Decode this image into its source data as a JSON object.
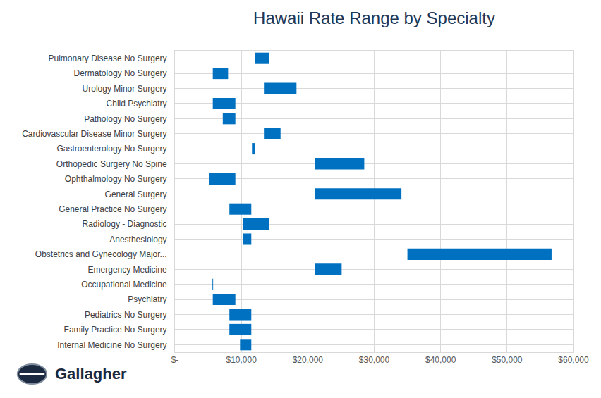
{
  "chart_data": {
    "type": "bar",
    "orientation": "horizontal",
    "title": "Hawaii Rate Range by Specialty",
    "categories": [
      "Pulmonary Disease No Surgery",
      "Dermatology No Surgery",
      "Urology Minor Surgery",
      "Child Psychiatry",
      "Pathology No Surgery",
      "Cardiovascular Disease Minor Surgery",
      "Gastroenterology No Surgery",
      "Orthopedic Surgery No Spine",
      "Ophthalmology No Surgery",
      "General Surgery",
      "General Practice No Surgery",
      "Radiology - Diagnostic",
      "Anesthesiology",
      "Obstetrics and Gynecology Major...",
      "Emergency Medicine",
      "Occupational Medicine",
      "Psychiatry",
      "Pediatrics No Surgery",
      "Family Practice No Surgery",
      "Internal Medicine No Surgery"
    ],
    "low": [
      12000,
      5700,
      13400,
      5700,
      7200,
      13400,
      11600,
      21100,
      5100,
      21100,
      8200,
      10200,
      10200,
      35000,
      21100,
      5650,
      5700,
      8200,
      8200,
      9800
    ],
    "high": [
      14200,
      8000,
      18300,
      9100,
      9100,
      15900,
      12000,
      28500,
      9100,
      34100,
      11500,
      14200,
      11500,
      56700,
      25100,
      5750,
      9100,
      11500,
      11500,
      11500
    ],
    "color": "#0070c0",
    "xlim": [
      0,
      60000
    ],
    "xticks": [
      {
        "value": 0,
        "label": "$-"
      },
      {
        "value": 10000,
        "label": "$10,000"
      },
      {
        "value": 20000,
        "label": "$20,000"
      },
      {
        "value": 30000,
        "label": "$30,000"
      },
      {
        "value": 40000,
        "label": "$40,000"
      },
      {
        "value": 50000,
        "label": "$50,000"
      },
      {
        "value": 60000,
        "label": "$60,000"
      }
    ],
    "grid": true,
    "annotations": [
      {
        "text": "Gallagher"
      }
    ]
  }
}
